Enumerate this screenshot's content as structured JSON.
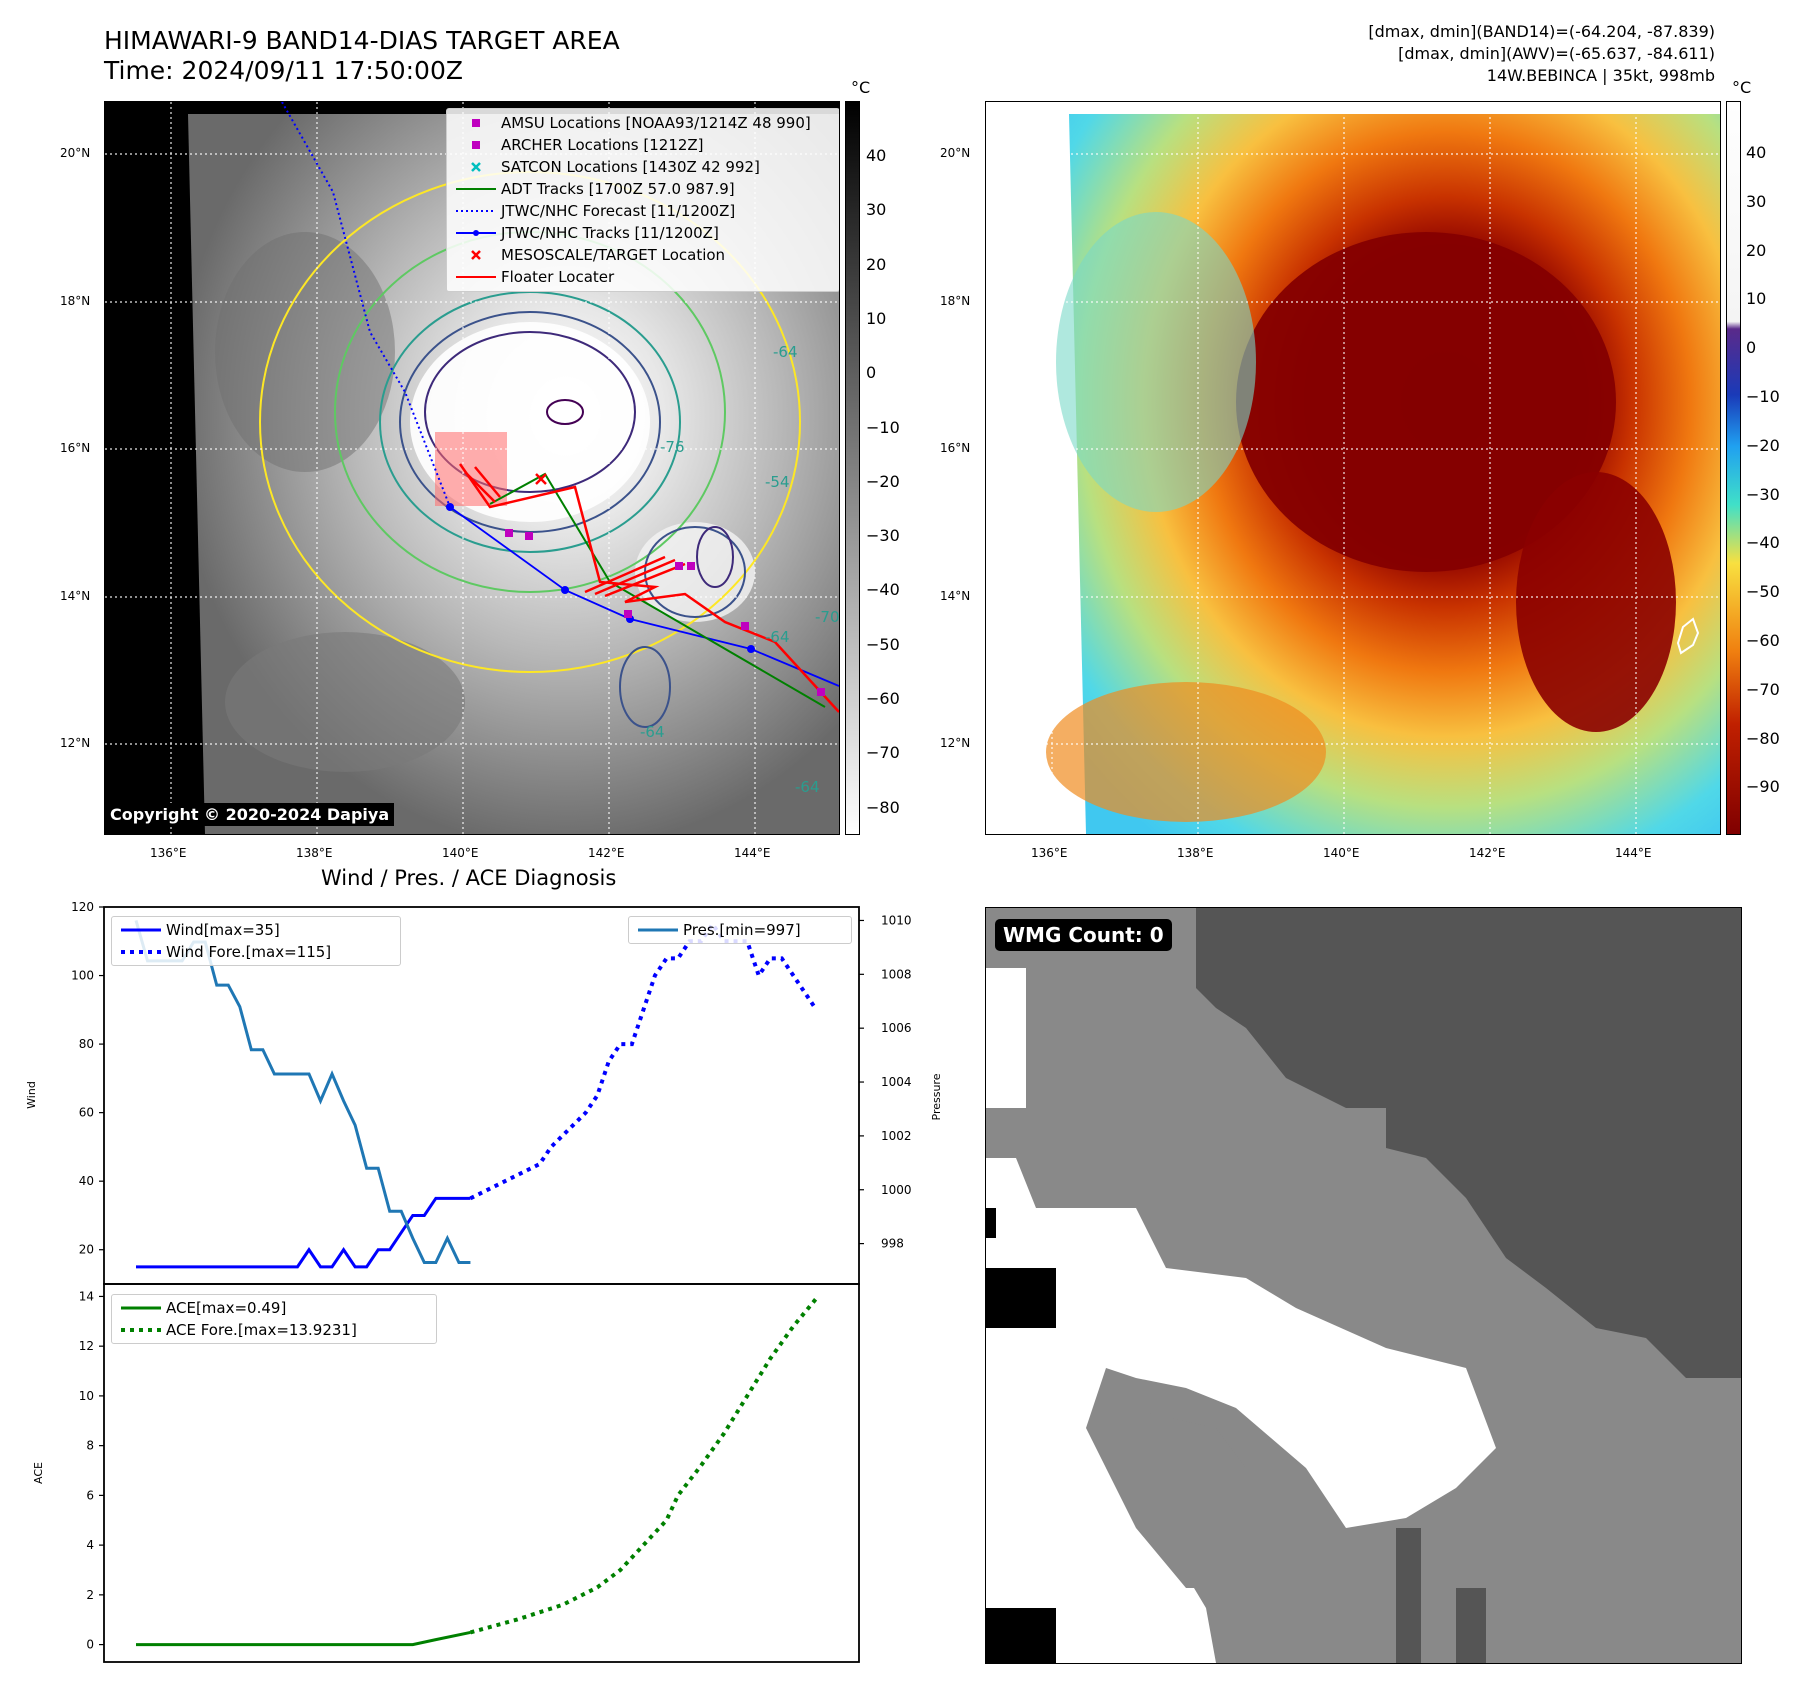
{
  "header": {
    "title_line1": "HIMAWARI-9 BAND14-DIAS TARGET AREA",
    "title_line2": "Time: 2024/09/11 17:50:00Z",
    "info_line1": "[dmax, dmin](BAND14)=(-64.204, -87.839)",
    "info_line2": "[dmax, dmin](AWV)=(-65.637, -84.611)",
    "info_line3": "14W.BEBINCA | 35kt, 998mb"
  },
  "maps": {
    "lat_labels": [
      "20°N",
      "18°N",
      "16°N",
      "14°N",
      "12°N"
    ],
    "lon_labels": [
      "136°E",
      "138°E",
      "140°E",
      "142°E",
      "144°E"
    ],
    "copyright": "Copyright © 2020-2024 Dapiya",
    "gray_colorbar": {
      "unit": "°C",
      "ticks": [
        "40",
        "30",
        "20",
        "10",
        "0",
        "−10",
        "−20",
        "−30",
        "−40",
        "−50",
        "−60",
        "−70",
        "−80"
      ]
    },
    "color_colorbar": {
      "unit": "°C",
      "ticks": [
        "40",
        "30",
        "20",
        "10",
        "0",
        "−10",
        "−20",
        "−30",
        "−40",
        "−50",
        "−60",
        "−70",
        "−80",
        "−90"
      ]
    },
    "contour_labels": [
      "-76",
      "-54",
      "-64",
      "-64",
      "-64",
      "-64",
      "-70"
    ],
    "legend": [
      {
        "label": "AMSU Locations [NOAA93/1214Z 48 990]",
        "symbol": "square",
        "color": "#bf00bf"
      },
      {
        "label": "ARCHER Locations [1212Z]",
        "symbol": "square",
        "color": "#bf00bf"
      },
      {
        "label": "SATCON Locations [1430Z 42 992]",
        "symbol": "x",
        "color": "#00bfbf"
      },
      {
        "label": "ADT Tracks [1700Z 57.0 987.9]",
        "symbol": "line",
        "color": "#008000"
      },
      {
        "label": "JTWC/NHC Forecast [11/1200Z]",
        "symbol": "dotted",
        "color": "#0000ff"
      },
      {
        "label": "JTWC/NHC Tracks [11/1200Z]",
        "symbol": "line-dot",
        "color": "#0000ff"
      },
      {
        "label": "MESOSCALE/TARGET Location",
        "symbol": "x",
        "color": "#ff0000"
      },
      {
        "label": "Floater Locater",
        "symbol": "line",
        "color": "#ff0000"
      }
    ]
  },
  "diagnosis": {
    "title": "Wind / Pres. / ACE Diagnosis",
    "wind_ylabel": "Wind",
    "pres_ylabel": "Pressure",
    "ace_ylabel": "ACE",
    "wind_yticks": [
      "20",
      "40",
      "60",
      "80",
      "100",
      "120"
    ],
    "pres_yticks": [
      "998",
      "1000",
      "1002",
      "1004",
      "1006",
      "1008",
      "1010"
    ],
    "ace_yticks": [
      "0",
      "2",
      "4",
      "6",
      "8",
      "10",
      "12",
      "14"
    ],
    "legend_wind": "Wind[max=35]",
    "legend_wind_fore": "Wind Fore.[max=115]",
    "legend_pres": "Pres.[min=997]",
    "legend_ace": "ACE[max=0.49]",
    "legend_ace_fore": "ACE Fore.[max=13.9231]",
    "wmg": "WMG Count: 0"
  },
  "chart_data": [
    {
      "type": "line",
      "title": "Wind / Pres. / ACE Diagnosis",
      "ylabel": "Wind",
      "ylim": [
        10,
        120
      ],
      "series": [
        {
          "name": "Wind[max=35]",
          "x": [
            0,
            1,
            2,
            3,
            4,
            5,
            6,
            7,
            8,
            9,
            10,
            11,
            12,
            13,
            14,
            15,
            16,
            17,
            18,
            19,
            20,
            21,
            22,
            23,
            24,
            25,
            26,
            27,
            28,
            29
          ],
          "values": [
            15,
            15,
            15,
            15,
            15,
            15,
            15,
            15,
            15,
            15,
            15,
            15,
            15,
            15,
            15,
            20,
            15,
            15,
            20,
            15,
            15,
            20,
            20,
            25,
            30,
            30,
            35,
            35,
            35,
            35
          ],
          "color": "#0000ff",
          "style": "solid"
        },
        {
          "name": "Wind Fore.[max=115]",
          "x": [
            29,
            32,
            35,
            36,
            39,
            40,
            41,
            42,
            43,
            44,
            45,
            46,
            47,
            48,
            49,
            50,
            51,
            52,
            53,
            54,
            55,
            56,
            57,
            58,
            59
          ],
          "values": [
            35,
            40,
            45,
            50,
            60,
            65,
            75,
            80,
            80,
            90,
            100,
            105,
            105,
            110,
            110,
            115,
            110,
            110,
            110,
            100,
            105,
            105,
            100,
            95,
            90
          ],
          "color": "#0000ff",
          "style": "dotted"
        }
      ]
    },
    {
      "type": "line",
      "ylabel": "Pressure",
      "ylim": [
        996.5,
        1010.5
      ],
      "series": [
        {
          "name": "Pres.[min=997]",
          "x": [
            0,
            1,
            2,
            3,
            4,
            5,
            6,
            7,
            8,
            9,
            10,
            11,
            12,
            13,
            14,
            15,
            16,
            17,
            18,
            19,
            20,
            21,
            22,
            23,
            24,
            25,
            26,
            27,
            28,
            29
          ],
          "values": [
            1010,
            1008.5,
            1008.5,
            1008.5,
            1008.5,
            1009.2,
            1009.2,
            1007.6,
            1007.6,
            1006.8,
            1005.2,
            1005.2,
            1004.3,
            1004.3,
            1004.3,
            1004.3,
            1003.3,
            1004.3,
            1003.3,
            1002.4,
            1000.8,
            1000.8,
            999.2,
            999.2,
            998.2,
            997.3,
            997.3,
            998.2,
            997.3,
            997.3
          ],
          "color": "#1f77b4",
          "style": "solid"
        }
      ]
    },
    {
      "type": "line",
      "ylabel": "ACE",
      "ylim": [
        -0.7,
        14.5
      ],
      "series": [
        {
          "name": "ACE[max=0.49]",
          "x": [
            0,
            18,
            20,
            22,
            24,
            26,
            29
          ],
          "values": [
            0,
            0,
            0,
            0,
            0,
            0.2,
            0.49
          ],
          "color": "#008000",
          "style": "solid"
        },
        {
          "name": "ACE Fore.[max=13.9231]",
          "x": [
            29,
            33,
            37,
            40,
            42,
            44,
            46,
            47,
            49,
            51,
            53,
            55,
            57,
            59
          ],
          "values": [
            0.49,
            1.0,
            1.6,
            2.3,
            3.0,
            4.0,
            5.0,
            6.0,
            7.2,
            8.5,
            10.0,
            11.5,
            12.8,
            13.9231
          ],
          "color": "#008000",
          "style": "dotted"
        }
      ]
    }
  ]
}
